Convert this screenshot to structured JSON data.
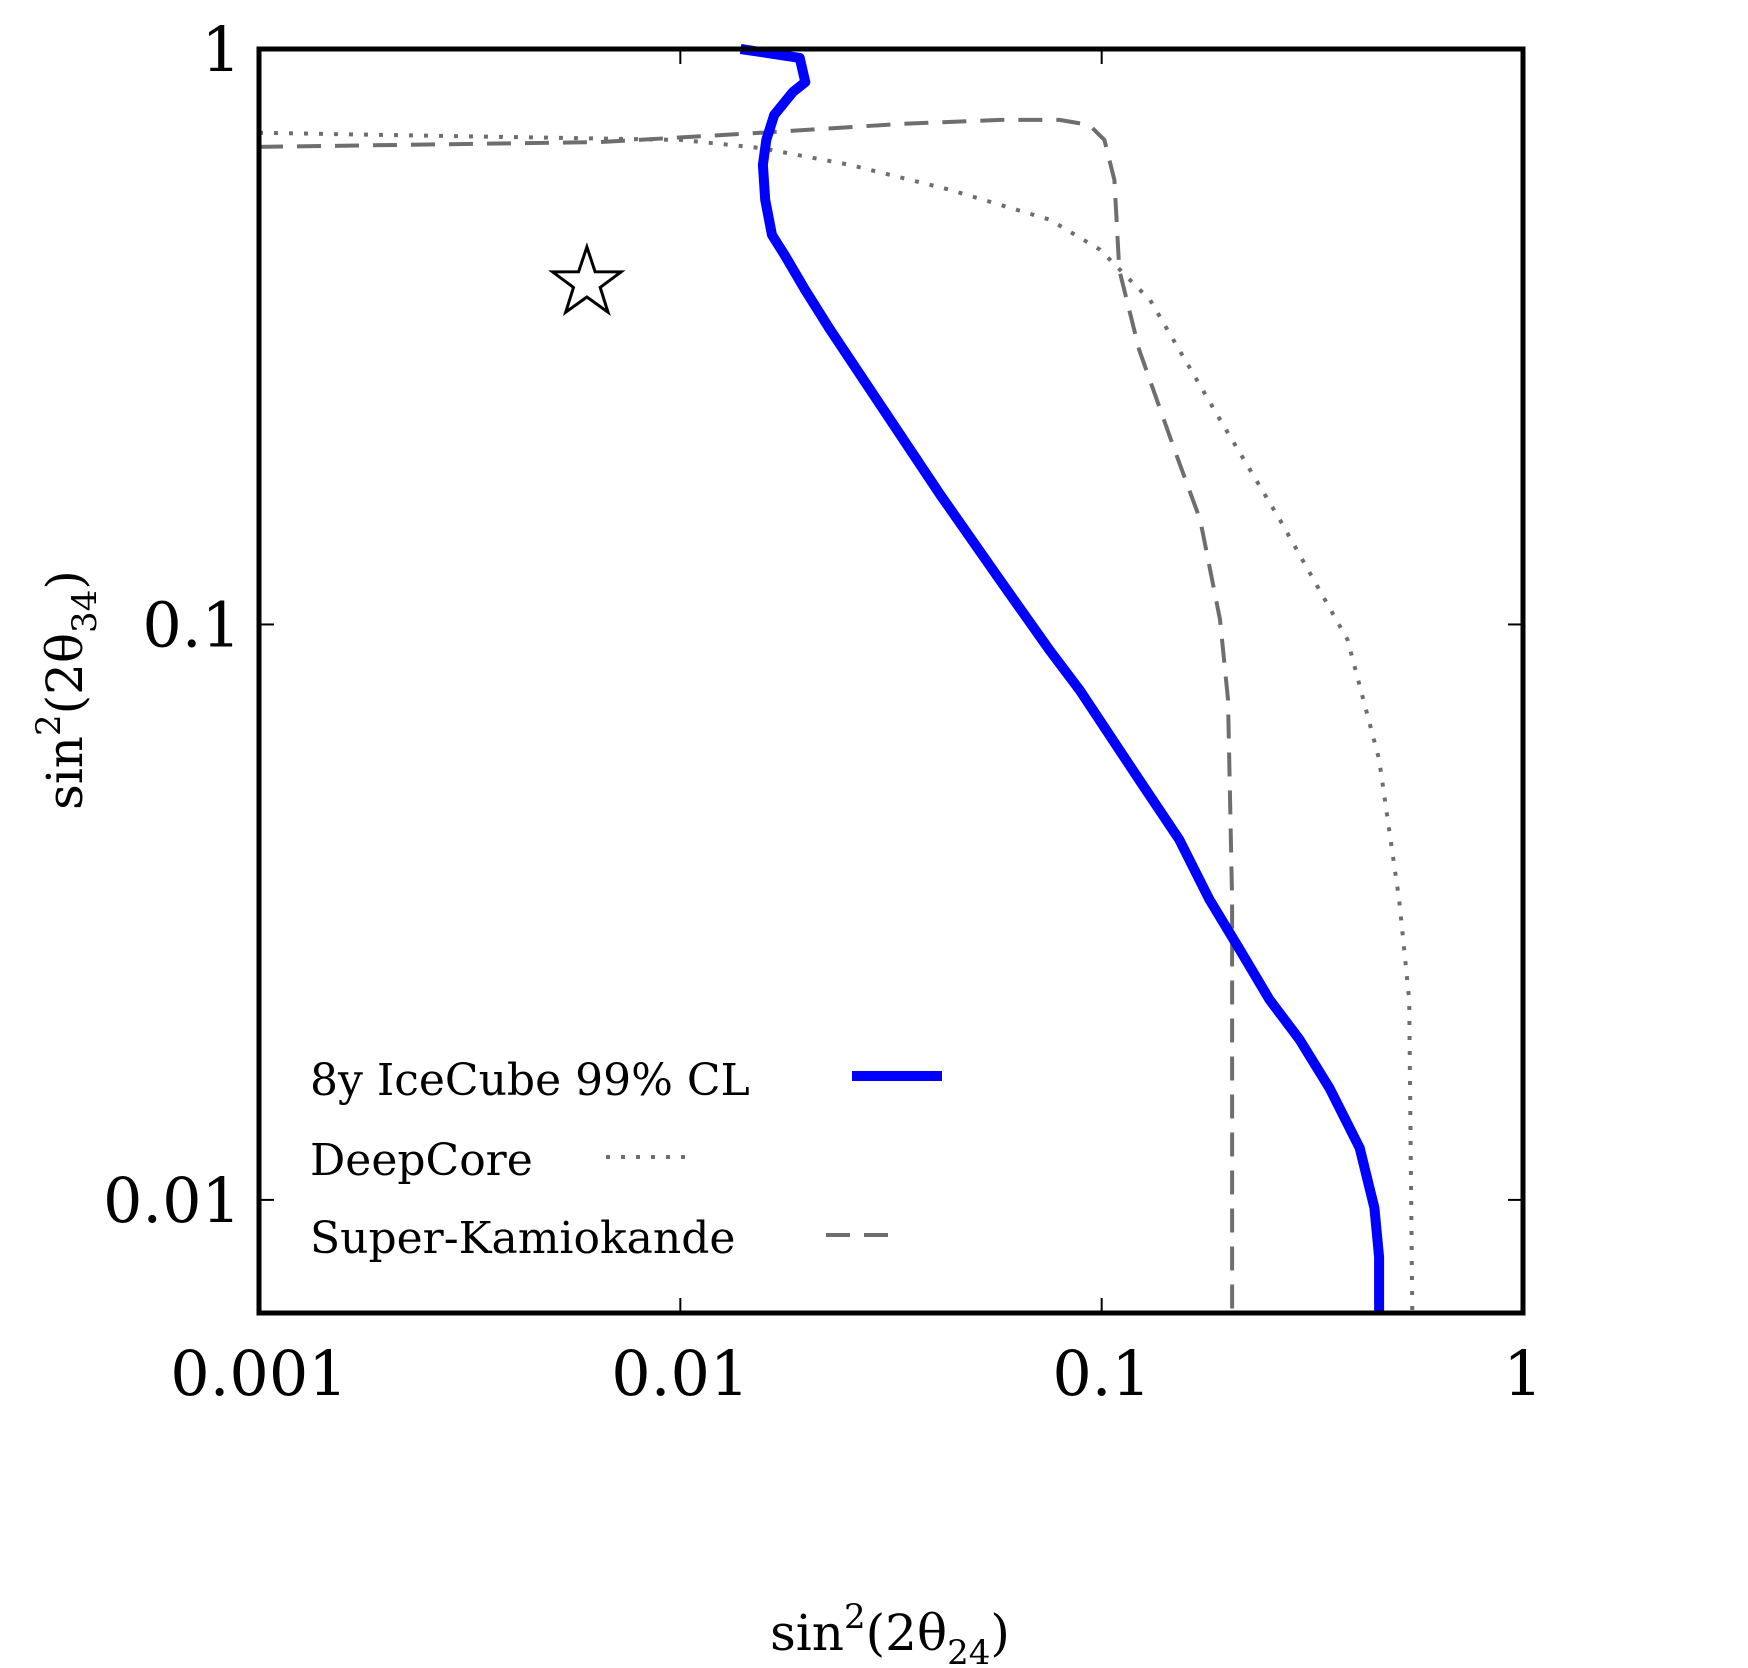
{
  "chart_data": {
    "type": "line",
    "title": "",
    "xlabel": "sin²(2θ₂₄)",
    "ylabel": "sin²(2θ₃₄)",
    "xlabel_parts": {
      "base": "sin",
      "sup": "2",
      "open": "(2θ",
      "sub": "24",
      "close": ")"
    },
    "ylabel_parts": {
      "base": "sin",
      "sup": "2",
      "open": "(2θ",
      "sub": "34",
      "close": ")"
    },
    "xscale": "log",
    "yscale": "log",
    "xlim": [
      0.001,
      1
    ],
    "ylim": [
      0.00636,
      1
    ],
    "grid": false,
    "legend_position": "bottom-left",
    "x_ticks": [
      {
        "value": 0.001,
        "label": "0.001"
      },
      {
        "value": 0.01,
        "label": "0.01"
      },
      {
        "value": 0.1,
        "label": "0.1"
      },
      {
        "value": 1,
        "label": "1"
      }
    ],
    "y_ticks": [
      {
        "value": 0.01,
        "label": "0.01"
      },
      {
        "value": 0.1,
        "label": "0.1"
      },
      {
        "value": 1,
        "label": "1"
      }
    ],
    "series": [
      {
        "name": "8y IceCube 99% CL",
        "style": "solid",
        "color": "#0000ff",
        "x": [
          0.0139,
          0.0192,
          0.0198,
          0.0185,
          0.0167,
          0.016,
          0.0157,
          0.0159,
          0.0165,
          0.0177,
          0.0198,
          0.0227,
          0.0298,
          0.0414,
          0.0574,
          0.0753,
          0.0887,
          0.1228,
          0.1528,
          0.1801,
          0.2122,
          0.2501,
          0.2948,
          0.3475,
          0.4096,
          0.4439,
          0.4554,
          0.4554
        ],
        "y": [
          1.0,
          0.965,
          0.876,
          0.842,
          0.768,
          0.695,
          0.629,
          0.547,
          0.475,
          0.438,
          0.381,
          0.325,
          0.241,
          0.168,
          0.1193,
          0.0901,
          0.0769,
          0.0537,
          0.0423,
          0.0333,
          0.0273,
          0.0223,
          0.019,
          0.01563,
          0.01231,
          0.00969,
          0.00795,
          0.00636
        ]
      },
      {
        "name": "DeepCore",
        "style": "dotted",
        "color": "#6e6e6e",
        "x": [
          0.001,
          0.01,
          0.0155,
          0.0253,
          0.0437,
          0.0753,
          0.0991,
          0.1304,
          0.1909,
          0.2648,
          0.3834,
          0.4554,
          0.508,
          0.537,
          0.546
        ],
        "y": [
          0.715,
          0.695,
          0.673,
          0.629,
          0.569,
          0.505,
          0.448,
          0.366,
          0.227,
          0.152,
          0.094,
          0.0583,
          0.0333,
          0.0223,
          0.00636
        ]
      },
      {
        "name": "Super-Kamiokande",
        "style": "dashed",
        "color": "#6e6e6e",
        "x": [
          0.001,
          0.00643,
          0.0155,
          0.0333,
          0.0574,
          0.0794,
          0.0934,
          0.1015,
          0.1072,
          0.1101,
          0.1228,
          0.149,
          0.1713,
          0.1909,
          0.1994,
          0.204,
          0.204
        ],
        "y": [
          0.676,
          0.689,
          0.715,
          0.741,
          0.753,
          0.753,
          0.738,
          0.695,
          0.592,
          0.413,
          0.3,
          0.201,
          0.152,
          0.102,
          0.0741,
          0.0333,
          0.00636
        ]
      }
    ],
    "markers": [
      {
        "name": "best-fit-point",
        "shape": "star",
        "filled": false,
        "x": 0.006,
        "y": 0.392
      }
    ]
  }
}
